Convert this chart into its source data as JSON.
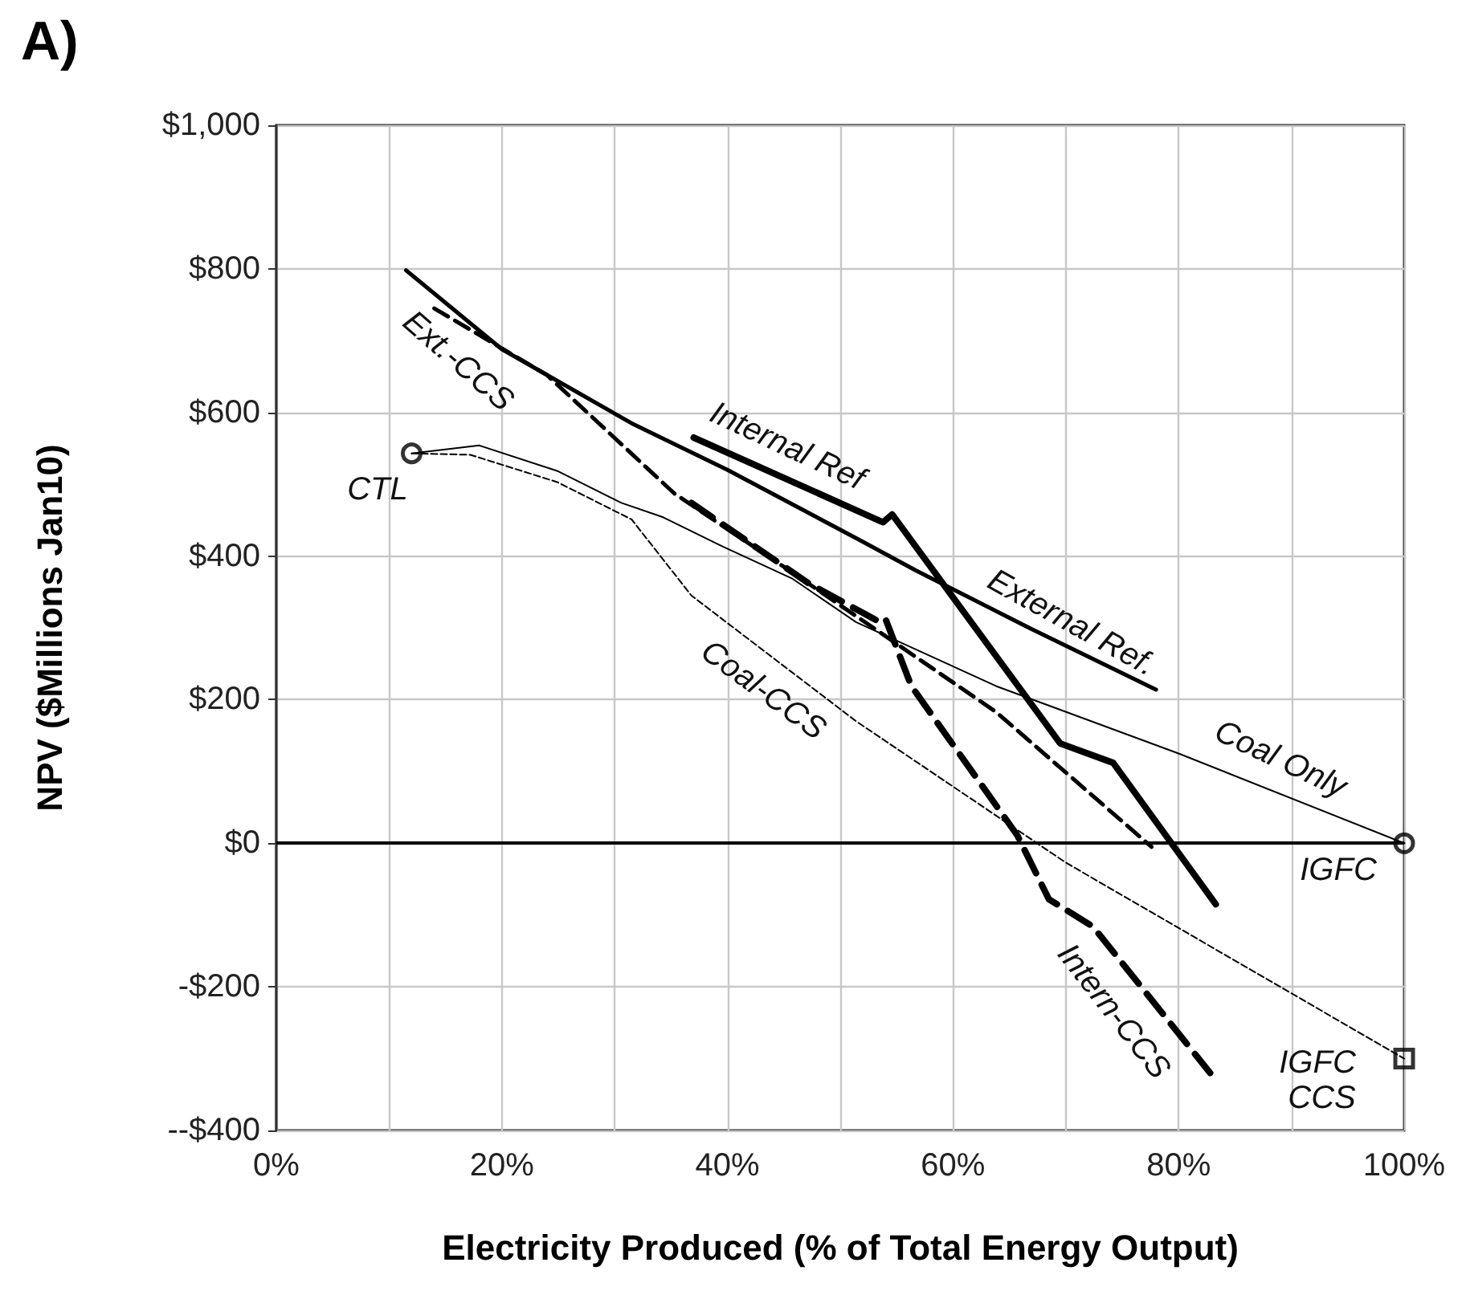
{
  "chart_data": {
    "type": "line",
    "title": "A)",
    "xlabel": "Electricity Produced (% of Total Energy Output)",
    "ylabel": "NPV ($Millions Jan10)",
    "xlim": [
      0,
      100
    ],
    "ylim": [
      -400,
      1000
    ],
    "xticks": [
      {
        "value": 0,
        "label": "0%"
      },
      {
        "value": 10,
        "label": null
      },
      {
        "value": 20,
        "label": "20%"
      },
      {
        "value": 30,
        "label": null
      },
      {
        "value": 40,
        "label": "40%"
      },
      {
        "value": 50,
        "label": null
      },
      {
        "value": 60,
        "label": "60%"
      },
      {
        "value": 70,
        "label": null
      },
      {
        "value": 80,
        "label": "80%"
      },
      {
        "value": 90,
        "label": null
      },
      {
        "value": 100,
        "label": "100%"
      }
    ],
    "yticks": [
      {
        "value": -400,
        "label": "--$400"
      },
      {
        "value": -200,
        "label": "-$200"
      },
      {
        "value": 0,
        "label": "$0"
      },
      {
        "value": 200,
        "label": "$200"
      },
      {
        "value": 400,
        "label": "$400"
      },
      {
        "value": 600,
        "label": "$600"
      },
      {
        "value": 800,
        "label": "$800"
      },
      {
        "value": 1000,
        "label": "$1,000"
      }
    ],
    "grid": true,
    "ref_lines": [
      {
        "axis": "y",
        "value": 0,
        "color": "#000000"
      }
    ],
    "series": [
      {
        "color": "#000000",
        "line_style": "solid",
        "marker": "none",
        "x": [
          11.5,
          20,
          31.5,
          40,
          52,
          56.7,
          67,
          78
        ],
        "values": [
          798,
          688,
          585,
          520,
          420,
          380,
          298,
          214
        ]
      },
      {
        "color": "#000000",
        "line_style": "solid",
        "marker": "none",
        "x": [
          37,
          53.8,
          54.6,
          69.5,
          74.2,
          83.3
        ],
        "values": [
          565,
          447,
          458,
          139,
          112,
          -85
        ]
      },
      {
        "color": "#000000",
        "line_style": "solid",
        "marker": "none",
        "x": [
          12,
          18,
          25,
          30.6,
          34.3,
          39.6,
          45.7,
          51.4,
          63.8,
          80,
          100
        ],
        "values": [
          543,
          554,
          518,
          474,
          454,
          413,
          369,
          308,
          219,
          125,
          0
        ]
      },
      {
        "color": "#000000",
        "line_style": "dashed",
        "marker": "none",
        "x": [
          12,
          17.2,
          24.9,
          31.5,
          36.8,
          51.4,
          70,
          100
        ],
        "values": [
          543,
          541,
          503,
          451,
          345,
          170,
          -27,
          -300
        ]
      },
      {
        "color": "#000000",
        "line_style": "dashed",
        "marker": "none",
        "x": [
          14,
          24,
          35.3,
          45,
          53.4,
          63.8,
          77.6
        ],
        "values": [
          745,
          652,
          487,
          385,
          295,
          183,
          -5
        ]
      },
      {
        "color": "#000000",
        "line_style": "dashed",
        "marker": "none",
        "x": [
          36.8,
          47.2,
          53.4,
          54,
          56.3,
          65.7,
          68.5,
          72.4,
          82.8
        ],
        "values": [
          474,
          362,
          309,
          313,
          219,
          11,
          -78,
          -116,
          -320
        ]
      },
      {
        "type": "scatter",
        "color": "#000000",
        "marker": "circle",
        "x": [
          12,
          100
        ],
        "values": [
          543,
          0
        ]
      },
      {
        "type": "scatter",
        "color": "#000000",
        "marker": "square",
        "x": [
          100
        ],
        "values": [
          -300
        ]
      }
    ],
    "annotations": [
      "Ext.-CCS",
      "Internal Ref",
      "External Ref.",
      "Coal Only",
      "Coal-CCS",
      "Intern-CCS",
      "CTL",
      "IGFC",
      "IGFC CCS"
    ]
  }
}
